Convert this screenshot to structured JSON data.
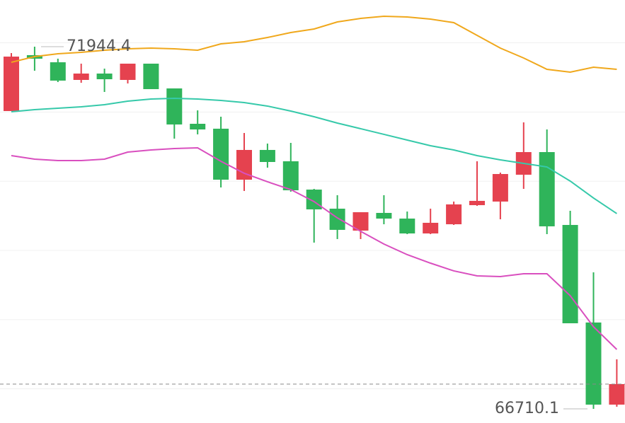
{
  "chart_data": {
    "type": "candlestick",
    "ylim": [
      66505.7,
      72619
    ],
    "grid_lines": [
      67000,
      68000,
      69000,
      70000,
      71000,
      72000
    ],
    "up_color": "#e5424f",
    "down_color": "#2fb45a",
    "candles": [
      {
        "open": 71014,
        "high": 71852,
        "low": 71014,
        "close": 71801
      },
      {
        "open": 71822,
        "high": 71944.4,
        "low": 71597,
        "close": 71771
      },
      {
        "open": 71719,
        "high": 71771,
        "low": 71433,
        "close": 71454
      },
      {
        "open": 71464,
        "high": 71699,
        "low": 71423,
        "close": 71556
      },
      {
        "open": 71556,
        "high": 71627,
        "low": 71290,
        "close": 71474
      },
      {
        "open": 71464,
        "high": 71699,
        "low": 71413,
        "close": 71699
      },
      {
        "open": 71699,
        "high": 71699,
        "low": 71331,
        "close": 71331
      },
      {
        "open": 71341,
        "high": 71341,
        "low": 70615,
        "close": 70820
      },
      {
        "open": 70830,
        "high": 71024,
        "low": 70677,
        "close": 70748
      },
      {
        "open": 70759,
        "high": 70932,
        "low": 69910,
        "close": 70022
      },
      {
        "open": 70022,
        "high": 70697,
        "low": 69859,
        "close": 70452
      },
      {
        "open": 70452,
        "high": 70544,
        "low": 70196,
        "close": 70278
      },
      {
        "open": 70288,
        "high": 70554,
        "low": 69848,
        "close": 69869
      },
      {
        "open": 69879,
        "high": 69889,
        "low": 69113,
        "close": 69593
      },
      {
        "open": 69603,
        "high": 69798,
        "low": 69164,
        "close": 69297
      },
      {
        "open": 69286,
        "high": 69552,
        "low": 69164,
        "close": 69552
      },
      {
        "open": 69542,
        "high": 69798,
        "low": 69378,
        "close": 69460
      },
      {
        "open": 69460,
        "high": 69562,
        "low": 69235,
        "close": 69245
      },
      {
        "open": 69245,
        "high": 69603,
        "low": 69235,
        "close": 69399
      },
      {
        "open": 69378,
        "high": 69706,
        "low": 69368,
        "close": 69665
      },
      {
        "open": 69654,
        "high": 70288,
        "low": 69644,
        "close": 69716
      },
      {
        "open": 69706,
        "high": 70125,
        "low": 69450,
        "close": 70104
      },
      {
        "open": 70094,
        "high": 70850,
        "low": 69889,
        "close": 70421
      },
      {
        "open": 70421,
        "high": 70748,
        "low": 69235,
        "close": 69348
      },
      {
        "open": 69368,
        "high": 69573,
        "low": 67947,
        "close": 67947
      },
      {
        "open": 67958,
        "high": 68683,
        "low": 66710.1,
        "close": 66771
      },
      {
        "open": 66771,
        "high": 67426,
        "low": 66741,
        "close": 67068
      }
    ],
    "series": [
      {
        "color": "#f0a81c",
        "values": [
          71719,
          71801,
          71842,
          71863,
          71893,
          71914,
          71924,
          71914,
          71893,
          71985,
          72016,
          72077,
          72149,
          72200,
          72302,
          72353,
          72384,
          72374,
          72343,
          72292,
          72108,
          71924,
          71781,
          71617,
          71576,
          71648,
          71617
        ]
      },
      {
        "color": "#36c9aa",
        "values": [
          71004,
          71035,
          71055,
          71075,
          71106,
          71157,
          71188,
          71198,
          71188,
          71167,
          71137,
          71086,
          71014,
          70932,
          70840,
          70759,
          70677,
          70595,
          70513,
          70452,
          70370,
          70309,
          70258,
          70206,
          70002,
          69757,
          69532
        ]
      },
      {
        "color": "#d94fbf",
        "values": [
          70370,
          70319,
          70298,
          70298,
          70319,
          70421,
          70452,
          70472,
          70482,
          70288,
          70115,
          69992,
          69879,
          69706,
          69470,
          69276,
          69092,
          68939,
          68816,
          68704,
          68632,
          68622,
          68663,
          68663,
          68346,
          67896,
          67569
        ]
      }
    ],
    "high_label": 71944.4,
    "low_label": 66710.1
  }
}
